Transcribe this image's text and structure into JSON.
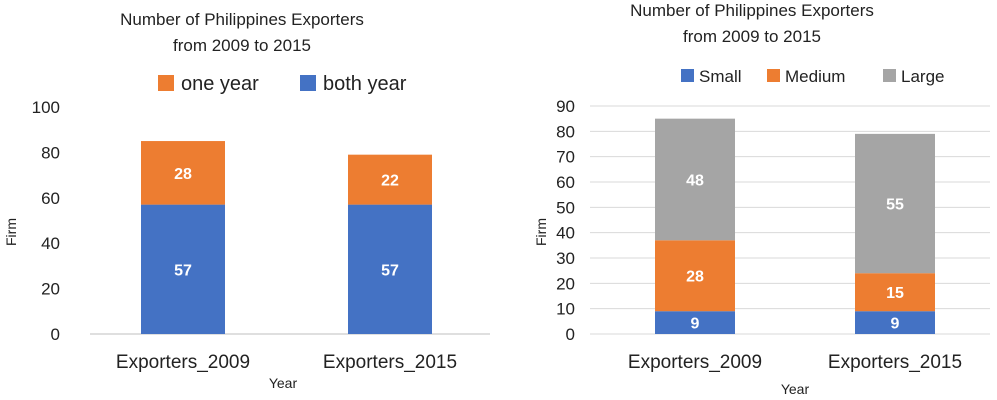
{
  "chart_data": [
    {
      "type": "bar",
      "stacked": true,
      "title": [
        "Number of Philippines Exporters",
        "from  2009 to 2015"
      ],
      "xlabel": "Year",
      "ylabel": "Firm",
      "ylim": [
        0,
        100
      ],
      "yticks": [
        0,
        20,
        40,
        60,
        80,
        100
      ],
      "grid": false,
      "legend_position": "top",
      "categories": [
        "Exporters_2009",
        "Exporters_2015"
      ],
      "series": [
        {
          "name": "both year",
          "color": "#4472C4",
          "values": [
            57,
            57
          ]
        },
        {
          "name": "one year",
          "color": "#ED7D31",
          "values": [
            28,
            22
          ]
        }
      ],
      "legend_order": [
        "one year",
        "both year"
      ]
    },
    {
      "type": "bar",
      "stacked": true,
      "title": [
        "Number of Philippines Exporters",
        "from 2009 to 2015"
      ],
      "xlabel": "Year",
      "ylabel": "Firm",
      "ylim": [
        0,
        90
      ],
      "yticks": [
        0,
        10,
        20,
        30,
        40,
        50,
        60,
        70,
        80,
        90
      ],
      "grid": true,
      "legend_position": "top",
      "categories": [
        "Exporters_2009",
        "Exporters_2015"
      ],
      "series": [
        {
          "name": "Small",
          "color": "#4472C4",
          "values": [
            9,
            9
          ]
        },
        {
          "name": "Medium",
          "color": "#ED7D31",
          "values": [
            28,
            15
          ]
        },
        {
          "name": "Large",
          "color": "#A5A5A5",
          "values": [
            48,
            55
          ]
        }
      ],
      "legend_order": [
        "Small",
        "Medium",
        "Large"
      ]
    }
  ]
}
